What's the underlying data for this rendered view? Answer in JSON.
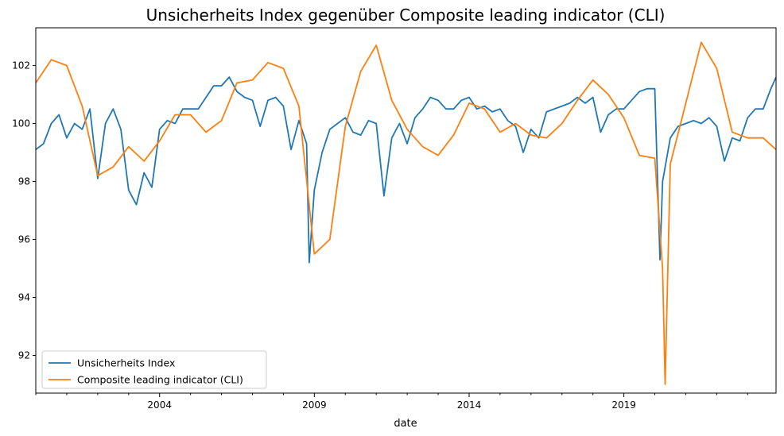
{
  "chart_data": {
    "type": "line",
    "title": "Unsicherheits Index gegenüber Composite leading indicator (CLI)",
    "xlabel": "date",
    "ylabel": "",
    "x_type": "date",
    "xlim": [
      "2000-01",
      "2023-12"
    ],
    "ylim": [
      90.7,
      103.3
    ],
    "x_ticks": [
      "2004",
      "2009",
      "2014",
      "2019"
    ],
    "y_ticks": [
      92,
      94,
      96,
      98,
      100,
      102
    ],
    "grid": false,
    "legend": "lower-left",
    "colors": {
      "Unsicherheits Index": "#1f77b4",
      "Composite leading indicator (CLI)": "#ff7f0e"
    },
    "series": [
      {
        "name": "Unsicherheits Index",
        "x": [
          "2000-01",
          "2000-04",
          "2000-07",
          "2000-10",
          "2001-01",
          "2001-04",
          "2001-07",
          "2001-10",
          "2002-01",
          "2002-04",
          "2002-07",
          "2002-10",
          "2003-01",
          "2003-04",
          "2003-07",
          "2003-10",
          "2004-01",
          "2004-04",
          "2004-07",
          "2004-10",
          "2005-01",
          "2005-04",
          "2005-07",
          "2005-10",
          "2006-01",
          "2006-04",
          "2006-07",
          "2006-10",
          "2007-01",
          "2007-04",
          "2007-07",
          "2007-10",
          "2008-01",
          "2008-04",
          "2008-07",
          "2008-10",
          "2008-11",
          "2009-01",
          "2009-04",
          "2009-07",
          "2009-10",
          "2010-01",
          "2010-04",
          "2010-07",
          "2010-10",
          "2011-01",
          "2011-04",
          "2011-07",
          "2011-10",
          "2012-01",
          "2012-04",
          "2012-07",
          "2012-10",
          "2013-01",
          "2013-04",
          "2013-07",
          "2013-10",
          "2014-01",
          "2014-04",
          "2014-07",
          "2014-10",
          "2015-01",
          "2015-04",
          "2015-07",
          "2015-10",
          "2016-01",
          "2016-04",
          "2016-07",
          "2016-10",
          "2017-01",
          "2017-04",
          "2017-07",
          "2017-10",
          "2018-01",
          "2018-04",
          "2018-07",
          "2018-10",
          "2019-01",
          "2019-04",
          "2019-07",
          "2019-10",
          "2020-01",
          "2020-03",
          "2020-04",
          "2020-07",
          "2020-10",
          "2021-01",
          "2021-04",
          "2021-07",
          "2021-10",
          "2022-01",
          "2022-04",
          "2022-07",
          "2022-10",
          "2023-01",
          "2023-04",
          "2023-07",
          "2023-10",
          "2023-12"
        ],
        "values": [
          99.1,
          99.3,
          100.0,
          100.3,
          99.5,
          100.0,
          99.8,
          100.5,
          98.1,
          100.0,
          100.5,
          99.8,
          97.7,
          97.2,
          98.3,
          97.8,
          99.8,
          100.1,
          100.0,
          100.5,
          100.5,
          100.5,
          100.9,
          101.3,
          101.3,
          101.6,
          101.1,
          100.9,
          100.8,
          99.9,
          100.8,
          100.9,
          100.6,
          99.1,
          100.1,
          99.3,
          95.2,
          97.7,
          99.0,
          99.8,
          100.0,
          100.2,
          99.7,
          99.6,
          100.1,
          100.0,
          97.5,
          99.5,
          100.0,
          99.3,
          100.2,
          100.5,
          100.9,
          100.8,
          100.5,
          100.5,
          100.8,
          100.9,
          100.5,
          100.6,
          100.4,
          100.5,
          100.1,
          99.9,
          99.0,
          99.8,
          99.5,
          100.4,
          100.5,
          100.6,
          100.7,
          100.9,
          100.7,
          100.9,
          99.7,
          100.3,
          100.5,
          100.5,
          100.8,
          101.1,
          101.2,
          101.2,
          95.3,
          98.0,
          99.5,
          99.9,
          100.0,
          100.1,
          100.0,
          100.2,
          99.9,
          98.7,
          99.5,
          99.4,
          100.2,
          100.5,
          100.5,
          101.2,
          101.6
        ]
      },
      {
        "name": "Composite leading indicator (CLI)",
        "x": [
          "2000-01",
          "2000-07",
          "2001-01",
          "2001-07",
          "2002-01",
          "2002-07",
          "2003-01",
          "2003-07",
          "2004-01",
          "2004-07",
          "2005-01",
          "2005-07",
          "2006-01",
          "2006-07",
          "2007-01",
          "2007-07",
          "2008-01",
          "2008-07",
          "2009-01",
          "2009-07",
          "2010-01",
          "2010-07",
          "2011-01",
          "2011-07",
          "2012-01",
          "2012-07",
          "2013-01",
          "2013-07",
          "2014-01",
          "2014-07",
          "2015-01",
          "2015-07",
          "2016-01",
          "2016-07",
          "2017-01",
          "2017-07",
          "2018-01",
          "2018-07",
          "2019-01",
          "2019-07",
          "2020-01",
          "2020-04",
          "2020-05",
          "2020-07",
          "2021-01",
          "2021-07",
          "2022-01",
          "2022-07",
          "2023-01",
          "2023-07",
          "2023-12"
        ],
        "values": [
          101.4,
          102.2,
          102.0,
          100.6,
          98.2,
          98.5,
          99.2,
          98.7,
          99.4,
          100.3,
          100.3,
          99.7,
          100.1,
          101.4,
          101.5,
          102.1,
          101.9,
          100.6,
          95.5,
          96.0,
          99.9,
          101.8,
          102.7,
          100.8,
          99.8,
          99.2,
          98.9,
          99.6,
          100.7,
          100.5,
          99.7,
          100.0,
          99.6,
          99.5,
          100.0,
          100.8,
          101.5,
          101.0,
          100.2,
          98.9,
          98.8,
          95.0,
          91.0,
          98.6,
          100.7,
          102.8,
          101.9,
          99.7,
          99.5,
          99.5,
          99.1
        ]
      }
    ]
  }
}
